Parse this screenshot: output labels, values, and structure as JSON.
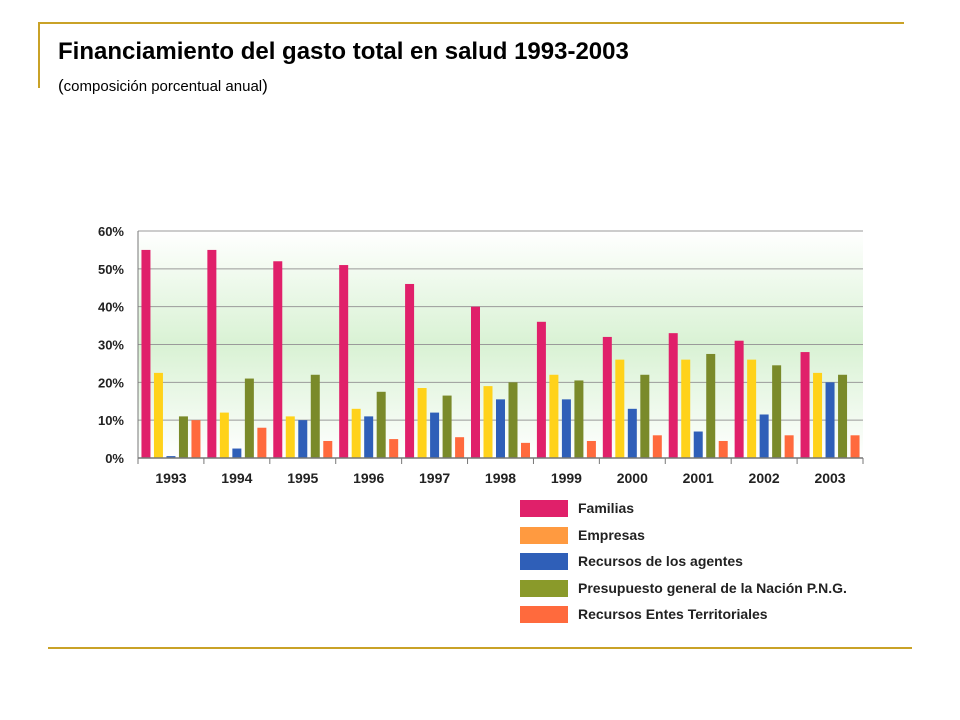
{
  "slide": {
    "title": "Financiamiento del gasto total en salud 1993-2003",
    "subtitle_open": "(",
    "subtitle_text": "composición porcentual anual",
    "subtitle_close": ")"
  },
  "colors": {
    "rule": "#c9a227",
    "plot_band": "#d9f2d4",
    "gridline": "#9a9a9a"
  },
  "chart_data": {
    "type": "bar",
    "title": "",
    "xlabel": "",
    "ylabel": "",
    "ylim": [
      0,
      60
    ],
    "yticks": [
      0,
      10,
      20,
      30,
      40,
      50,
      60
    ],
    "ytick_labels": [
      "0%",
      "10%",
      "20%",
      "30%",
      "40%",
      "50%",
      "60%"
    ],
    "grid": true,
    "legend_position": "bottom-right",
    "categories": [
      "1993",
      "1994",
      "1995",
      "1996",
      "1997",
      "1998",
      "1999",
      "2000",
      "2001",
      "2002",
      "2003"
    ],
    "series": [
      {
        "name": "Familias",
        "color": "#e0206a",
        "values": [
          55,
          55,
          52,
          51,
          46,
          40,
          36,
          32,
          33,
          31,
          28
        ]
      },
      {
        "name": "Empresas",
        "color": "#ffd21a",
        "values": [
          22.5,
          12,
          11,
          13,
          18.5,
          19,
          22,
          26,
          26,
          26,
          22.5
        ]
      },
      {
        "name": "Recursos de los agentes",
        "color": "#2f5fb8",
        "values": [
          0.5,
          2.5,
          10,
          11,
          12,
          15.5,
          15.5,
          13,
          7,
          11.5,
          20
        ]
      },
      {
        "name": "Presupuesto general de la Nación P.N.G.",
        "color": "#7a8a2a",
        "values": [
          11,
          21,
          22,
          17.5,
          16.5,
          20,
          20.5,
          22,
          27.5,
          24.5,
          22
        ]
      },
      {
        "name": "Recursos Entes Territoriales",
        "color": "#ff6a3d",
        "values": [
          10,
          8,
          4.5,
          5,
          5.5,
          4,
          4.5,
          6,
          4.5,
          6,
          6
        ]
      }
    ]
  },
  "legend": {
    "items": [
      {
        "label": "Familias",
        "color": "#e0206a"
      },
      {
        "label": "Empresas",
        "color": "#ff9a40"
      },
      {
        "label": "Recursos de los agentes",
        "color": "#2f5fb8"
      },
      {
        "label": "Presupuesto general de la Nación P.N.G.",
        "color": "#8a9a2a"
      },
      {
        "label": "Recursos Entes Territoriales",
        "color": "#ff6a3d"
      }
    ]
  }
}
